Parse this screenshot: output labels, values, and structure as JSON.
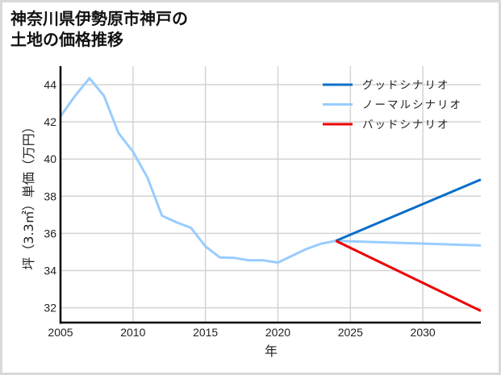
{
  "title_lines": [
    "神奈川県伊勢原市神戸の",
    "土地の価格推移"
  ],
  "chart_data": {
    "type": "line",
    "title": "神奈川県伊勢原市神戸の土地の価格推移",
    "xlabel": "年",
    "ylabel": "坪（3.3㎡）単価（万円）",
    "xlim": [
      2005,
      2034
    ],
    "ylim": [
      31.2,
      45.0
    ],
    "xticks": [
      2005,
      2010,
      2015,
      2020,
      2025,
      2030
    ],
    "yticks": [
      32,
      34,
      36,
      38,
      40,
      42,
      44
    ],
    "grid": true,
    "legend_position": "upper right",
    "series": [
      {
        "name": "グッドシナリオ",
        "color": "#0a6ec8",
        "x": [
          2024,
          2034
        ],
        "values": [
          35.6,
          38.9
        ]
      },
      {
        "name": "ノーマルシナリオ",
        "color": "#99ccff",
        "x": [
          2005,
          2006,
          2007,
          2008,
          2009,
          2010,
          2011,
          2012,
          2013,
          2014,
          2015,
          2016,
          2017,
          2018,
          2019,
          2020,
          2021,
          2022,
          2023,
          2024,
          2034
        ],
        "values": [
          42.3,
          43.4,
          44.35,
          43.4,
          41.4,
          40.4,
          39.0,
          36.95,
          36.6,
          36.3,
          35.3,
          34.7,
          34.68,
          34.55,
          34.55,
          34.43,
          34.8,
          35.17,
          35.45,
          35.6,
          35.35
        ]
      },
      {
        "name": "バッドシナリオ",
        "color": "#ee0000",
        "x": [
          2024,
          2034
        ],
        "values": [
          35.6,
          31.83
        ]
      }
    ]
  }
}
